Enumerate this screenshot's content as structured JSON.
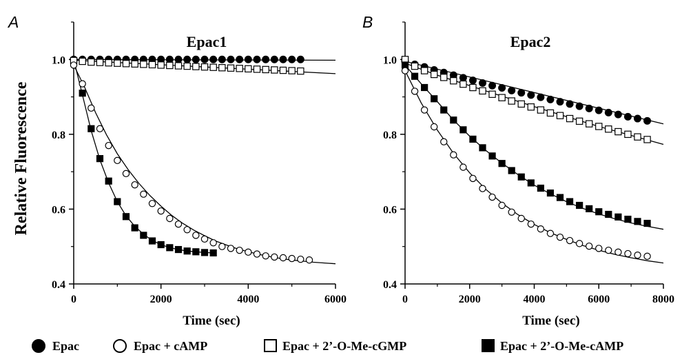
{
  "figure": {
    "ylabel": "Relative Fluorescence",
    "legend": [
      {
        "label": "Epac",
        "marker": "filled-circle"
      },
      {
        "label": "Epac + cAMP",
        "marker": "open-circle"
      },
      {
        "label": "Epac + 2’-O-Me-cGMP",
        "marker": "open-square"
      },
      {
        "label": "Epac + 2’-O-Me-cAMP",
        "marker": "filled-square"
      }
    ]
  },
  "chart_data": [
    {
      "type": "scatter",
      "panel": "A",
      "title": "Epac1",
      "xlabel": "Time (sec)",
      "ylabel": "Relative Fluorescence",
      "xlim": [
        0,
        6000
      ],
      "ylim": [
        0.4,
        1.1
      ],
      "xticks": [
        0,
        2000,
        4000,
        6000
      ],
      "yticks": [
        0.4,
        0.6,
        0.8,
        1.0
      ],
      "xtick_labels": [
        "0",
        "2000",
        "4000",
        "6000"
      ],
      "ytick_labels": [
        "0.4",
        "0.6",
        "0.8",
        "1.0"
      ],
      "fit_lines": true,
      "series": [
        {
          "name": "Epac",
          "marker": "filled-circle",
          "x": [
            0,
            200,
            400,
            600,
            800,
            1000,
            1200,
            1400,
            1600,
            1800,
            2000,
            2200,
            2400,
            2600,
            2800,
            3000,
            3200,
            3400,
            3600,
            3800,
            4000,
            4200,
            4400,
            4600,
            4800,
            5000,
            5200
          ],
          "y": [
            1.0,
            1.0,
            1.0,
            1.0,
            1.0,
            1.0,
            1.0,
            1.0,
            1.0,
            1.0,
            1.0,
            1.0,
            1.0,
            1.0,
            1.0,
            1.0,
            1.0,
            1.0,
            1.0,
            1.0,
            1.0,
            1.0,
            1.0,
            1.0,
            1.0,
            1.0,
            1.0
          ],
          "fit": {
            "x": [
              0,
              6000
            ],
            "y": [
              1.0,
              0.998
            ]
          }
        },
        {
          "name": "Epac + 2’-O-Me-cGMP",
          "marker": "open-square",
          "x": [
            0,
            200,
            400,
            600,
            800,
            1000,
            1200,
            1400,
            1600,
            1800,
            2000,
            2200,
            2400,
            2600,
            2800,
            3000,
            3200,
            3400,
            3600,
            3800,
            4000,
            4200,
            4400,
            4600,
            4800,
            5000,
            5200
          ],
          "y": [
            0.997,
            0.995,
            0.993,
            0.992,
            0.991,
            0.99,
            0.989,
            0.988,
            0.987,
            0.986,
            0.985,
            0.984,
            0.983,
            0.982,
            0.981,
            0.98,
            0.979,
            0.978,
            0.977,
            0.976,
            0.975,
            0.974,
            0.973,
            0.972,
            0.971,
            0.97,
            0.969
          ],
          "fit": {
            "x": [
              0,
              6000
            ],
            "y": [
              0.998,
              0.962
            ]
          }
        },
        {
          "name": "Epac + cAMP",
          "marker": "open-circle",
          "x": [
            0,
            200,
            400,
            600,
            800,
            1000,
            1200,
            1400,
            1600,
            1800,
            2000,
            2200,
            2400,
            2600,
            2800,
            3000,
            3200,
            3400,
            3600,
            3800,
            4000,
            4200,
            4400,
            4600,
            4800,
            5000,
            5200,
            5400
          ],
          "y": [
            0.985,
            0.935,
            0.87,
            0.815,
            0.77,
            0.73,
            0.695,
            0.665,
            0.64,
            0.615,
            0.595,
            0.575,
            0.56,
            0.545,
            0.53,
            0.52,
            0.51,
            0.5,
            0.495,
            0.49,
            0.485,
            0.48,
            0.475,
            0.472,
            0.47,
            0.468,
            0.466,
            0.464
          ],
          "fit": {
            "x": [
              0,
              250,
              500,
              750,
              1000,
              1250,
              1500,
              1750,
              2000,
              2250,
              2500,
              2750,
              3000,
              3250,
              3500,
              3750,
              4000,
              4250,
              4500,
              4750,
              5000,
              5250,
              5500,
              5750,
              6000
            ],
            "y": [
              0.985,
              0.926,
              0.858,
              0.799,
              0.748,
              0.705,
              0.668,
              0.636,
              0.608,
              0.583,
              0.562,
              0.544,
              0.529,
              0.515,
              0.504,
              0.494,
              0.486,
              0.479,
              0.473,
              0.468,
              0.464,
              0.461,
              0.458,
              0.456,
              0.454
            ]
          }
        },
        {
          "name": "Epac + 2’-O-Me-cAMP",
          "marker": "filled-square",
          "x": [
            200,
            400,
            600,
            800,
            1000,
            1200,
            1400,
            1600,
            1800,
            2000,
            2200,
            2400,
            2600,
            2800,
            3000,
            3200
          ],
          "y": [
            0.91,
            0.815,
            0.735,
            0.675,
            0.62,
            0.58,
            0.55,
            0.53,
            0.515,
            0.505,
            0.497,
            0.492,
            0.488,
            0.486,
            0.484,
            0.483
          ],
          "fit": {
            "x": [
              0,
              200,
              400,
              600,
              800,
              1000,
              1200,
              1400,
              1600,
              1800,
              2000,
              2200,
              2400,
              2600,
              2800,
              3000,
              3200
            ],
            "y": [
              1.0,
              0.905,
              0.81,
              0.732,
              0.67,
              0.62,
              0.582,
              0.554,
              0.533,
              0.516,
              0.505,
              0.497,
              0.492,
              0.488,
              0.486,
              0.484,
              0.483
            ]
          }
        }
      ]
    },
    {
      "type": "scatter",
      "panel": "B",
      "title": "Epac2",
      "xlabel": "Time (sec)",
      "ylabel": "Relative Fluorescence",
      "xlim": [
        0,
        8000
      ],
      "ylim": [
        0.4,
        1.1
      ],
      "xticks": [
        0,
        2000,
        4000,
        6000,
        8000
      ],
      "yticks": [
        0.4,
        0.6,
        0.8,
        1.0
      ],
      "xtick_labels": [
        "0",
        "2000",
        "4000",
        "6000",
        "8000"
      ],
      "ytick_labels": [
        "0.4",
        "0.6",
        "0.8",
        "1.0"
      ],
      "fit_lines": true,
      "series": [
        {
          "name": "Epac",
          "marker": "filled-circle",
          "x": [
            0,
            300,
            600,
            900,
            1200,
            1500,
            1800,
            2100,
            2400,
            2700,
            3000,
            3300,
            3600,
            3900,
            4200,
            4500,
            4800,
            5100,
            5400,
            5700,
            6000,
            6300,
            6600,
            6900,
            7200,
            7500
          ],
          "y": [
            0.995,
            0.987,
            0.98,
            0.972,
            0.965,
            0.958,
            0.951,
            0.944,
            0.937,
            0.93,
            0.924,
            0.917,
            0.911,
            0.905,
            0.899,
            0.893,
            0.887,
            0.881,
            0.875,
            0.869,
            0.864,
            0.858,
            0.853,
            0.847,
            0.842,
            0.836
          ],
          "fit": {
            "x": [
              0,
              8000
            ],
            "y": [
              0.995,
              0.828
            ]
          }
        },
        {
          "name": "Epac + 2’-O-Me-cGMP",
          "marker": "open-square",
          "x": [
            0,
            300,
            600,
            900,
            1200,
            1500,
            1800,
            2100,
            2400,
            2700,
            3000,
            3300,
            3600,
            3900,
            4200,
            4500,
            4800,
            5100,
            5400,
            5700,
            6000,
            6300,
            6600,
            6900,
            7200,
            7500
          ],
          "y": [
            1.0,
            0.982,
            0.97,
            0.96,
            0.952,
            0.943,
            0.934,
            0.925,
            0.916,
            0.907,
            0.898,
            0.889,
            0.881,
            0.873,
            0.865,
            0.857,
            0.85,
            0.842,
            0.835,
            0.828,
            0.821,
            0.814,
            0.807,
            0.8,
            0.793,
            0.786
          ],
          "fit": {
            "x": [
              0,
              1000,
              2000,
              3000,
              4000,
              5000,
              6000,
              7000,
              8000
            ],
            "y": [
              0.99,
              0.958,
              0.93,
              0.902,
              0.874,
              0.847,
              0.821,
              0.797,
              0.773
            ]
          }
        },
        {
          "name": "Epac + 2’-O-Me-cAMP",
          "marker": "filled-square",
          "x": [
            0,
            300,
            600,
            900,
            1200,
            1500,
            1800,
            2100,
            2400,
            2700,
            3000,
            3300,
            3600,
            3900,
            4200,
            4500,
            4800,
            5100,
            5400,
            5700,
            6000,
            6300,
            6600,
            6900,
            7200,
            7500
          ],
          "y": [
            0.985,
            0.955,
            0.925,
            0.895,
            0.865,
            0.838,
            0.812,
            0.787,
            0.764,
            0.742,
            0.722,
            0.703,
            0.686,
            0.67,
            0.656,
            0.643,
            0.631,
            0.62,
            0.61,
            0.601,
            0.593,
            0.586,
            0.579,
            0.573,
            0.567,
            0.562
          ],
          "fit": {
            "x": [
              0,
              500,
              1000,
              1500,
              2000,
              2500,
              3000,
              3500,
              4000,
              4500,
              5000,
              5500,
              6000,
              6500,
              7000,
              7500,
              8000
            ],
            "y": [
              0.985,
              0.935,
              0.887,
              0.838,
              0.795,
              0.757,
              0.723,
              0.692,
              0.664,
              0.641,
              0.62,
              0.602,
              0.587,
              0.574,
              0.563,
              0.554,
              0.546
            ]
          }
        },
        {
          "name": "Epac + cAMP",
          "marker": "open-circle",
          "x": [
            0,
            300,
            600,
            900,
            1200,
            1500,
            1800,
            2100,
            2400,
            2700,
            3000,
            3300,
            3600,
            3900,
            4200,
            4500,
            4800,
            5100,
            5400,
            5700,
            6000,
            6300,
            6600,
            6900,
            7200,
            7500
          ],
          "y": [
            0.97,
            0.915,
            0.865,
            0.82,
            0.78,
            0.745,
            0.712,
            0.682,
            0.655,
            0.632,
            0.61,
            0.592,
            0.575,
            0.56,
            0.547,
            0.535,
            0.525,
            0.516,
            0.508,
            0.501,
            0.495,
            0.49,
            0.485,
            0.481,
            0.477,
            0.474
          ],
          "fit": {
            "x": [
              0,
              500,
              1000,
              1500,
              2000,
              2500,
              3000,
              3500,
              4000,
              4500,
              5000,
              5500,
              6000,
              6500,
              7000,
              7500,
              8000
            ],
            "y": [
              0.97,
              0.884,
              0.811,
              0.749,
              0.697,
              0.653,
              0.616,
              0.585,
              0.559,
              0.537,
              0.519,
              0.503,
              0.49,
              0.479,
              0.47,
              0.462,
              0.456
            ]
          }
        }
      ]
    }
  ]
}
